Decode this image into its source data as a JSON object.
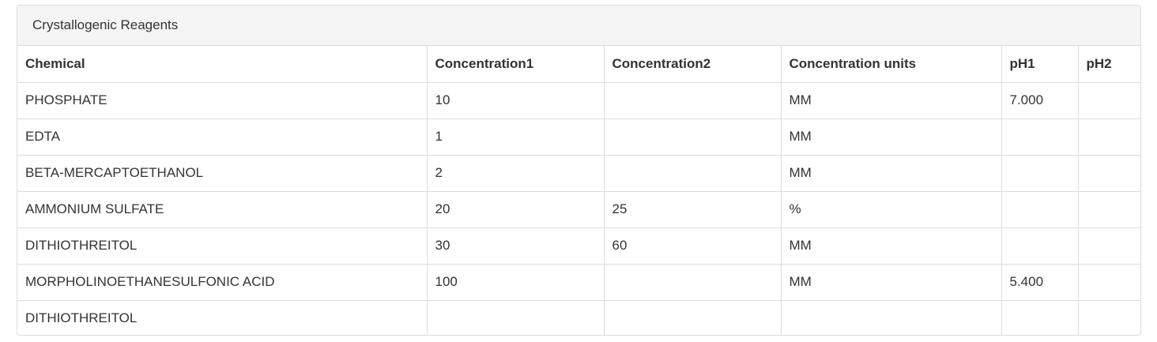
{
  "panel": {
    "title": "Crystallogenic Reagents"
  },
  "table": {
    "headers": {
      "chemical": "Chemical",
      "concentration1": "Concentration1",
      "concentration2": "Concentration2",
      "units": "Concentration units",
      "ph1": "pH1",
      "ph2": "pH2"
    },
    "rows": [
      {
        "chemical": "PHOSPHATE",
        "concentration1": "10",
        "concentration2": "",
        "units": "MM",
        "ph1": "7.000",
        "ph2": ""
      },
      {
        "chemical": "EDTA",
        "concentration1": "1",
        "concentration2": "",
        "units": "MM",
        "ph1": "",
        "ph2": ""
      },
      {
        "chemical": "BETA-MERCAPTOETHANOL",
        "concentration1": "2",
        "concentration2": "",
        "units": "MM",
        "ph1": "",
        "ph2": ""
      },
      {
        "chemical": "AMMONIUM SULFATE",
        "concentration1": "20",
        "concentration2": "25",
        "units": "%",
        "ph1": "",
        "ph2": ""
      },
      {
        "chemical": "DITHIOTHREITOL",
        "concentration1": "30",
        "concentration2": "60",
        "units": "MM",
        "ph1": "",
        "ph2": ""
      },
      {
        "chemical": "MORPHOLINOETHANESULFONIC ACID",
        "concentration1": "100",
        "concentration2": "",
        "units": "MM",
        "ph1": "5.400",
        "ph2": ""
      },
      {
        "chemical": "DITHIOTHREITOL",
        "concentration1": "",
        "concentration2": "",
        "units": "",
        "ph1": "",
        "ph2": ""
      }
    ]
  }
}
